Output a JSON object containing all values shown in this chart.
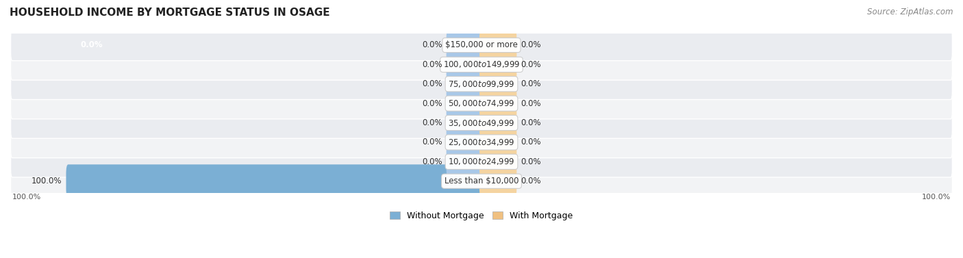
{
  "title": "HOUSEHOLD INCOME BY MORTGAGE STATUS IN OSAGE",
  "source": "Source: ZipAtlas.com",
  "categories": [
    "Less than $10,000",
    "$10,000 to $24,999",
    "$25,000 to $34,999",
    "$35,000 to $49,999",
    "$50,000 to $74,999",
    "$75,000 to $99,999",
    "$100,000 to $149,999",
    "$150,000 or more"
  ],
  "without_mortgage": [
    100.0,
    0.0,
    0.0,
    0.0,
    0.0,
    0.0,
    0.0,
    0.0
  ],
  "with_mortgage": [
    0.0,
    0.0,
    0.0,
    0.0,
    0.0,
    0.0,
    0.0,
    0.0
  ],
  "without_mortgage_color": "#7bafd4",
  "with_mortgage_color": "#f0c080",
  "without_mortgage_stub_color": "#a8c8e8",
  "with_mortgage_stub_color": "#f5d4a0",
  "row_bg_odd": "#eaecf0",
  "row_bg_even": "#f2f3f5",
  "title_fontsize": 11,
  "source_fontsize": 8.5,
  "bar_label_fontsize": 8.5,
  "category_fontsize": 8.5,
  "legend_fontsize": 9,
  "max_value": 100.0,
  "stub_size": 8.0,
  "legend_labels": [
    "Without Mortgage",
    "With Mortgage"
  ],
  "bottom_left_label": "100.0%",
  "bottom_right_label": "100.0%"
}
